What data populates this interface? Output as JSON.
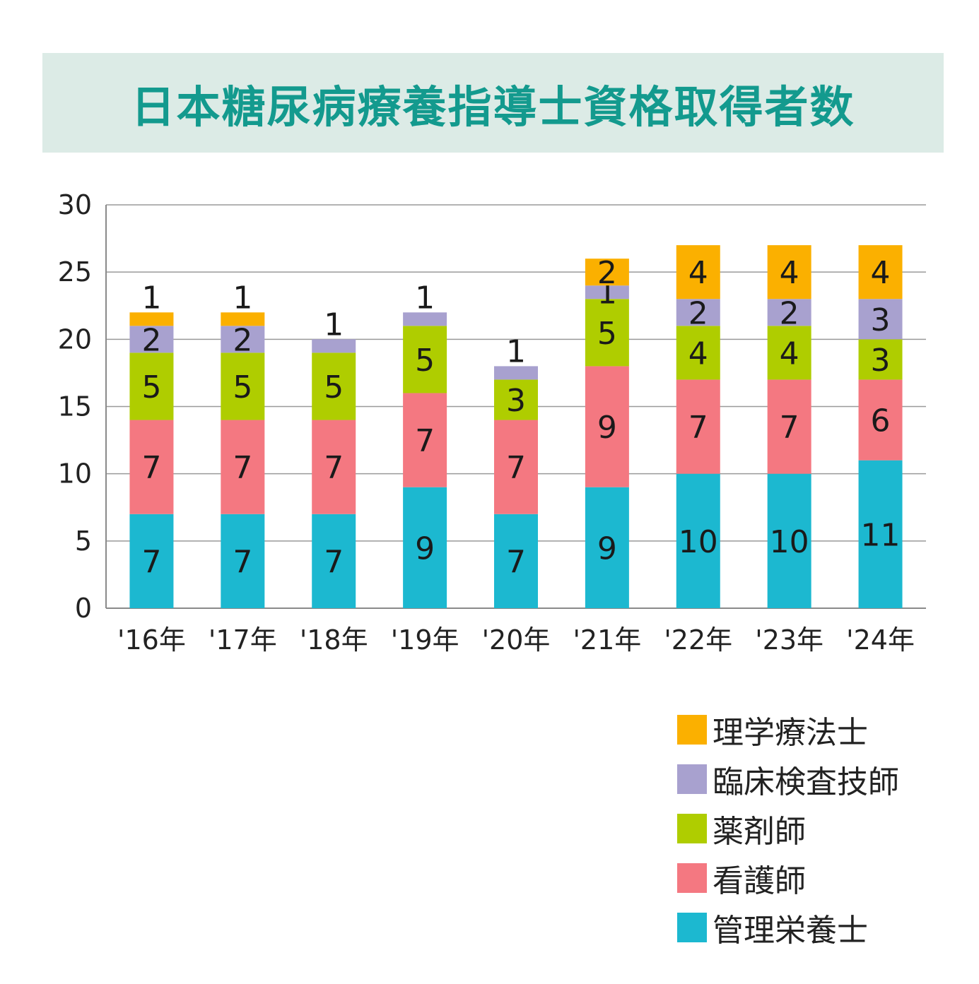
{
  "chart_data": {
    "type": "bar",
    "stacked": true,
    "title": "日本糖尿病療養指導士資格取得者数",
    "categories": [
      "'16年",
      "'17年",
      "'18年",
      "'19年",
      "'20年",
      "'21年",
      "'22年",
      "'23年",
      "'24年"
    ],
    "ylim": [
      0,
      30
    ],
    "yticks": [
      0,
      5,
      10,
      15,
      20,
      25,
      30
    ],
    "grid": true,
    "series": [
      {
        "name": "管理栄養士",
        "color": "#1cb8d0",
        "values": [
          7,
          7,
          7,
          9,
          7,
          9,
          10,
          10,
          11
        ]
      },
      {
        "name": "看護師",
        "color": "#f47881",
        "values": [
          7,
          7,
          7,
          7,
          7,
          9,
          7,
          7,
          6
        ]
      },
      {
        "name": "薬剤師",
        "color": "#afcd00",
        "values": [
          5,
          5,
          5,
          5,
          3,
          5,
          4,
          4,
          3
        ]
      },
      {
        "name": "臨床検査技師",
        "color": "#a8a1cf",
        "values": [
          2,
          2,
          1,
          1,
          1,
          1,
          2,
          2,
          3
        ]
      },
      {
        "name": "理学療法士",
        "color": "#fbb000",
        "values": [
          1,
          1,
          0,
          0,
          0,
          2,
          4,
          4,
          4
        ]
      }
    ],
    "legend_order": [
      "理学療法士",
      "臨床検査技師",
      "薬剤師",
      "看護師",
      "管理栄養士"
    ],
    "legend_position": "bottom-right"
  }
}
